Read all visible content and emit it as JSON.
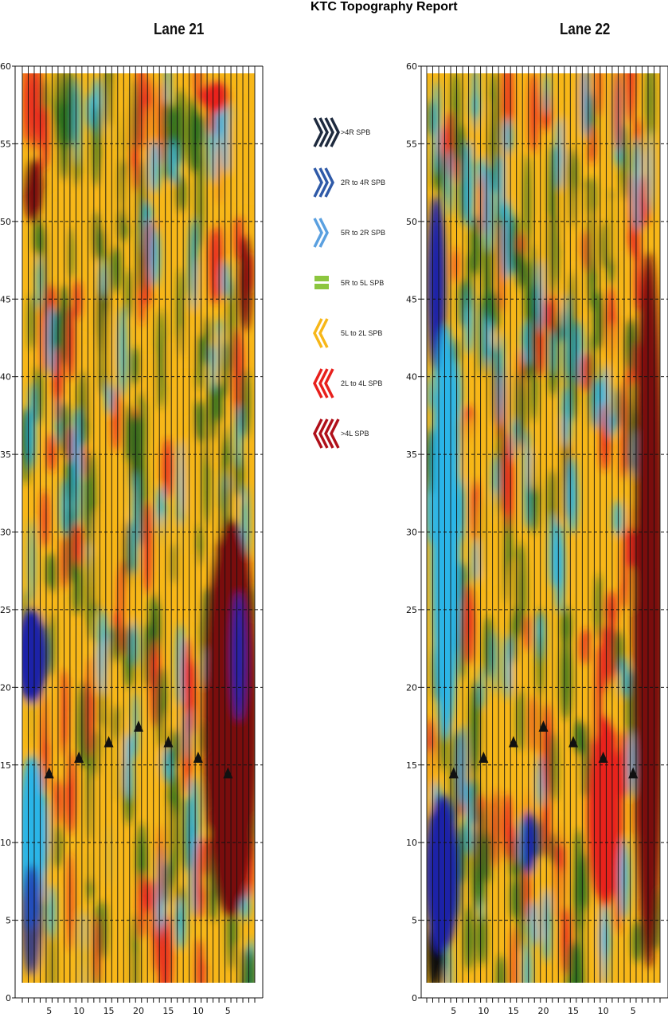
{
  "report": {
    "title": "KTC Topography Report"
  },
  "legend": {
    "items": [
      {
        "label": ">4R SPB",
        "color": "#1e2a3e",
        "kind": "right",
        "count": 4
      },
      {
        "label": "2R to 4R SPB",
        "color": "#2f5aa8",
        "kind": "right",
        "count": 3
      },
      {
        "label": "5R to 2R SPB",
        "color": "#5aa0e0",
        "kind": "right",
        "count": 2
      },
      {
        "label": "5R to 5L SPB",
        "color": "#8cc63f",
        "kind": "bar",
        "count": 2
      },
      {
        "label": "5L to 2L SPB",
        "color": "#f7b719",
        "kind": "left",
        "count": 2
      },
      {
        "label": "2L to 4L SPB",
        "color": "#e8201c",
        "kind": "left",
        "count": 3
      },
      {
        "label": ">4L SPB",
        "color": "#b0101a",
        "kind": "left",
        "count": 4
      }
    ]
  },
  "chart_data": [
    {
      "type": "heatmap",
      "title": "Lane 21",
      "ylim": [
        0,
        60
      ],
      "y_ticks": [
        0,
        5,
        10,
        15,
        20,
        25,
        30,
        35,
        40,
        45,
        50,
        55,
        60
      ],
      "x_ticks": [
        "5",
        "10",
        "15",
        "20",
        "15",
        "10",
        "5"
      ],
      "board_count": 39,
      "grid_y": [
        5,
        10,
        15,
        20,
        25,
        30,
        35,
        40,
        45,
        50,
        55
      ],
      "arrows": [
        {
          "board": 5,
          "y": 14.5
        },
        {
          "board": 10,
          "y": 15.5
        },
        {
          "board": 15,
          "y": 16.5
        },
        {
          "board": 20,
          "y": 17.5
        },
        {
          "board": 15,
          "y": 16.5,
          "side": "L"
        },
        {
          "board": 10,
          "y": 15.5,
          "side": "L"
        },
        {
          "board": 5,
          "y": 14.5,
          "side": "L"
        }
      ],
      "colors": {
        "far_right": "#1e22a8",
        "right": "#2bb5e8",
        "neutral": "#1d6b1d",
        "left_light": "#f7b719",
        "left": "#e8201c",
        "far_left": "#7a0a0a"
      }
    },
    {
      "type": "heatmap",
      "title": "Lane 22",
      "ylim": [
        0,
        60
      ],
      "y_ticks": [
        0,
        5,
        10,
        15,
        20,
        25,
        30,
        35,
        40,
        45,
        50,
        55,
        60
      ],
      "x_ticks": [
        "5",
        "10",
        "15",
        "20",
        "15",
        "10",
        "5"
      ],
      "board_count": 39,
      "grid_y": [
        5,
        10,
        15,
        20,
        25,
        30,
        35,
        40,
        45,
        50,
        55
      ],
      "arrows": [
        {
          "board": 5,
          "y": 14.5
        },
        {
          "board": 10,
          "y": 15.5
        },
        {
          "board": 15,
          "y": 16.5
        },
        {
          "board": 20,
          "y": 17.5
        },
        {
          "board": 15,
          "y": 16.5,
          "side": "L"
        },
        {
          "board": 10,
          "y": 15.5,
          "side": "L"
        },
        {
          "board": 5,
          "y": 14.5,
          "side": "L"
        }
      ],
      "colors": {
        "far_right": "#1e22a8",
        "right": "#2bb5e8",
        "neutral": "#1d6b1d",
        "left_light": "#f7b719",
        "left": "#e8201c",
        "far_left": "#7a0a0a"
      }
    }
  ]
}
